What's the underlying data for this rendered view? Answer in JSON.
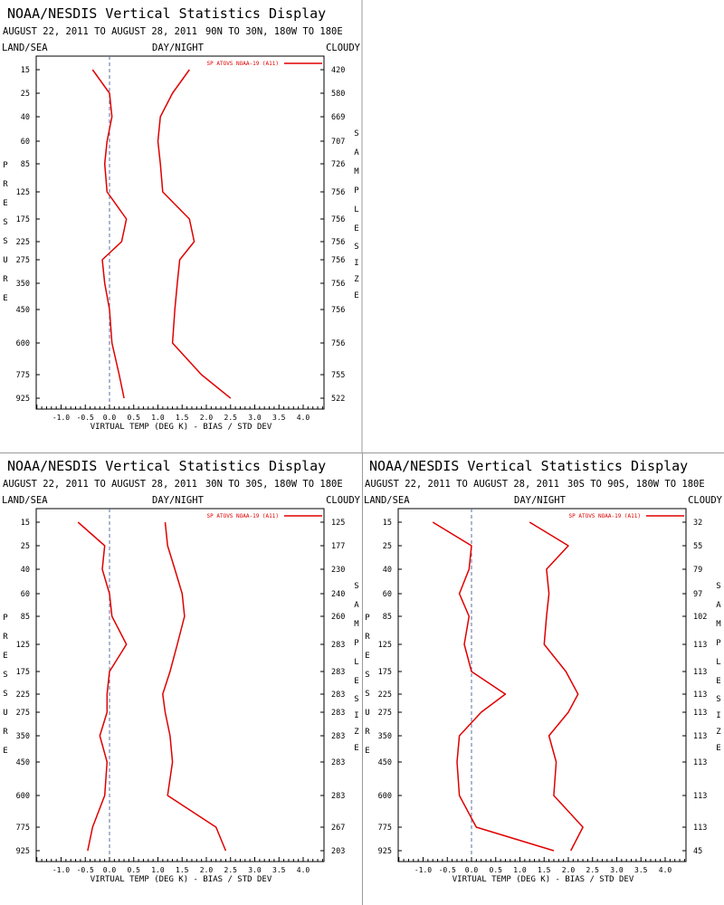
{
  "figure": {
    "title": "NOAA/NESDIS Vertical Statistics Display",
    "date_range": "AUGUST 22, 2011 TO AUGUST 28, 2011",
    "land_sea": "LAND/SEA",
    "day_night": "DAY/NIGHT",
    "cloudy": "CLOUDY",
    "left_axis_word": "PRESSURE",
    "right_axis_word": "SAMPLE",
    "right_axis_word2": "SIZE",
    "xlabel": "VIRTUAL TEMP (DEG K) - BIAS / STD DEV",
    "legend": "SP ATOVS NOAA-19 (A11)",
    "line_color": "#e00000",
    "zero_line_color": "#5a6ea0",
    "panel_border_color": "#9a9a9a"
  },
  "chart_data": [
    {
      "type": "line",
      "region": "90N TO 30N, 180W TO 180E",
      "pressure_levels": [
        15,
        25,
        40,
        60,
        85,
        125,
        175,
        225,
        275,
        350,
        450,
        600,
        775,
        925
      ],
      "x_ticks": [
        "-1.0",
        "-0.5",
        "0.0",
        "0.5",
        "1.0",
        "1.5",
        "2.0",
        "2.5",
        "3.0",
        "3.5",
        "4.0"
      ],
      "xlim": [
        -1.5,
        4.4
      ],
      "sample_size": [
        "420",
        "580",
        "669",
        "707",
        "726",
        "756",
        "756",
        "756",
        "756",
        "756",
        "756",
        "756",
        "755",
        "522"
      ],
      "series": [
        {
          "values": [
            -0.35,
            0.0,
            0.05,
            -0.05,
            -0.1,
            -0.05,
            0.35,
            0.25,
            -0.15,
            -0.1,
            0.0,
            0.05,
            0.2,
            0.3
          ]
        },
        {
          "values": [
            1.65,
            1.3,
            1.05,
            1.0,
            1.05,
            1.1,
            1.65,
            1.75,
            1.45,
            1.4,
            1.35,
            1.3,
            1.9,
            2.5
          ]
        }
      ]
    },
    {
      "type": "line",
      "region": "30N TO 30S, 180W TO 180E",
      "pressure_levels": [
        15,
        25,
        40,
        60,
        85,
        125,
        175,
        225,
        275,
        350,
        450,
        600,
        775,
        925
      ],
      "x_ticks": [
        "-1.0",
        "-0.5",
        "0.0",
        "0.5",
        "1.0",
        "1.5",
        "2.0",
        "2.5",
        "3.0",
        "3.5",
        "4.0"
      ],
      "xlim": [
        -1.5,
        4.4
      ],
      "sample_size": [
        "125",
        "177",
        "230",
        "240",
        "260",
        "283",
        "283",
        "283",
        "283",
        "283",
        "283",
        "283",
        "267",
        "203"
      ],
      "series": [
        {
          "values": [
            -0.65,
            -0.1,
            -0.15,
            0.0,
            0.05,
            0.35,
            0.0,
            -0.05,
            -0.05,
            -0.2,
            -0.05,
            -0.1,
            -0.35,
            -0.45
          ]
        },
        {
          "values": [
            1.15,
            1.2,
            1.35,
            1.5,
            1.55,
            1.4,
            1.25,
            1.1,
            1.15,
            1.25,
            1.3,
            1.2,
            2.2,
            2.4
          ]
        }
      ]
    },
    {
      "type": "line",
      "region": "30S TO 90S, 180W TO 180E",
      "pressure_levels": [
        15,
        25,
        40,
        60,
        85,
        125,
        175,
        225,
        275,
        350,
        450,
        600,
        775,
        925
      ],
      "x_ticks": [
        "-1.0",
        "-0.5",
        "0.0",
        "0.5",
        "1.0",
        "1.5",
        "2.0",
        "2.5",
        "3.0",
        "3.5",
        "4.0"
      ],
      "xlim": [
        -1.5,
        4.4
      ],
      "sample_size": [
        "32",
        "55",
        "79",
        "97",
        "102",
        "113",
        "113",
        "113",
        "113",
        "113",
        "113",
        "113",
        "113",
        "45"
      ],
      "series": [
        {
          "values": [
            -0.8,
            0.0,
            -0.05,
            -0.25,
            -0.05,
            -0.15,
            0.0,
            0.7,
            0.2,
            -0.25,
            -0.3,
            -0.25,
            0.1,
            1.7
          ]
        },
        {
          "values": [
            1.2,
            2.0,
            1.55,
            1.6,
            1.55,
            1.5,
            1.95,
            2.2,
            2.0,
            1.6,
            1.75,
            1.7,
            2.3,
            2.05
          ]
        }
      ]
    }
  ]
}
